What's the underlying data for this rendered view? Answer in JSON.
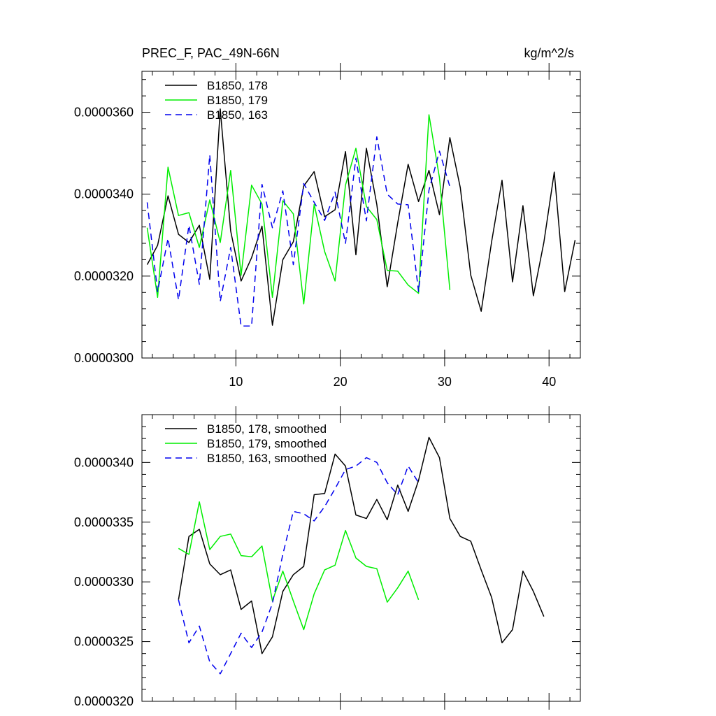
{
  "chart_data": [
    {
      "type": "line",
      "title_left": "PREC_F, PAC_49N-66N",
      "title_right": "kg/m^2/s",
      "xlim": [
        1,
        43
      ],
      "ylim": [
        3e-05,
        3.7e-05
      ],
      "x_ticks": [
        10,
        20,
        30,
        40
      ],
      "x_tick_labels": [
        "10",
        "20",
        "30",
        "40"
      ],
      "y_ticks": [
        3e-05,
        3.2e-05,
        3.4e-05,
        3.6e-05
      ],
      "y_tick_labels": [
        "0.0000300",
        "0.0000320",
        "0.0000340",
        "0.0000360"
      ],
      "series": [
        {
          "name": "B1850, 178",
          "color": "#000000",
          "dash": "solid",
          "x_start": 1.5,
          "values": [
            3.228e-05,
            3.275e-05,
            3.396e-05,
            3.302e-05,
            3.282e-05,
            3.324e-05,
            3.192e-05,
            3.608e-05,
            3.31e-05,
            3.188e-05,
            3.245e-05,
            3.322e-05,
            3.08e-05,
            3.24e-05,
            3.284e-05,
            3.42e-05,
            3.455e-05,
            3.345e-05,
            3.362e-05,
            3.504e-05,
            3.252e-05,
            3.512e-05,
            3.375e-05,
            3.174e-05,
            3.33e-05,
            3.473e-05,
            3.382e-05,
            3.458e-05,
            3.35e-05,
            3.538e-05,
            3.416e-05,
            3.202e-05,
            3.114e-05,
            3.284e-05,
            3.434e-05,
            3.186e-05,
            3.372e-05,
            3.152e-05,
            3.282e-05,
            3.454e-05,
            3.162e-05,
            3.288e-05
          ]
        },
        {
          "name": "B1850, 179",
          "color": "#00ee00",
          "dash": "solid",
          "x_start": 1.5,
          "values": [
            3.318e-05,
            3.148e-05,
            3.466e-05,
            3.348e-05,
            3.355e-05,
            3.27e-05,
            3.386e-05,
            3.282e-05,
            3.458e-05,
            3.202e-05,
            3.422e-05,
            3.376e-05,
            3.148e-05,
            3.384e-05,
            3.352e-05,
            3.132e-05,
            3.375e-05,
            3.26e-05,
            3.188e-05,
            3.422e-05,
            3.512e-05,
            3.37e-05,
            3.338e-05,
            3.214e-05,
            3.212e-05,
            3.178e-05,
            3.158e-05,
            3.594e-05,
            3.44e-05,
            3.166e-05
          ]
        },
        {
          "name": "B1850, 163",
          "color": "#0000ee",
          "dash": "dashed",
          "x_start": 1.5,
          "values": [
            3.38e-05,
            3.162e-05,
            3.292e-05,
            3.142e-05,
            3.324e-05,
            3.18e-05,
            3.496e-05,
            3.138e-05,
            3.27e-05,
            3.078e-05,
            3.078e-05,
            3.424e-05,
            3.318e-05,
            3.408e-05,
            3.228e-05,
            3.426e-05,
            3.38e-05,
            3.336e-05,
            3.405e-05,
            3.28e-05,
            3.488e-05,
            3.335e-05,
            3.54e-05,
            3.4e-05,
            3.376e-05,
            3.374e-05,
            3.162e-05,
            3.41e-05,
            3.505e-05,
            3.418e-05
          ]
        }
      ]
    },
    {
      "type": "line",
      "xlim": [
        1,
        43
      ],
      "ylim": [
        3.2e-05,
        3.44e-05
      ],
      "x_ticks": [
        10,
        20,
        30,
        40
      ],
      "y_ticks": [
        3.2e-05,
        3.25e-05,
        3.3e-05,
        3.35e-05,
        3.4e-05
      ],
      "y_tick_labels": [
        "0.0000320",
        "0.0000325",
        "0.0000330",
        "0.0000335",
        "0.0000340"
      ],
      "series": [
        {
          "name": "B1850, 178, smoothed",
          "color": "#000000",
          "dash": "solid",
          "x_start": 4.5,
          "values": [
            3.285e-05,
            3.338e-05,
            3.344e-05,
            3.315e-05,
            3.306e-05,
            3.31e-05,
            3.277e-05,
            3.284e-05,
            3.24e-05,
            3.254e-05,
            3.292e-05,
            3.306e-05,
            3.313e-05,
            3.373e-05,
            3.374e-05,
            3.407e-05,
            3.397e-05,
            3.356e-05,
            3.353e-05,
            3.369e-05,
            3.352e-05,
            3.381e-05,
            3.359e-05,
            3.385e-05,
            3.421e-05,
            3.404e-05,
            3.353e-05,
            3.338e-05,
            3.334e-05,
            3.31e-05,
            3.287e-05,
            3.249e-05,
            3.26e-05,
            3.309e-05,
            3.292e-05,
            3.271e-05
          ]
        },
        {
          "name": "B1850, 179, smoothed",
          "color": "#00ee00",
          "dash": "solid",
          "x_start": 4.5,
          "values": [
            3.328e-05,
            3.323e-05,
            3.367e-05,
            3.327e-05,
            3.338e-05,
            3.34e-05,
            3.322e-05,
            3.321e-05,
            3.33e-05,
            3.284e-05,
            3.309e-05,
            3.284e-05,
            3.26e-05,
            3.29e-05,
            3.31e-05,
            3.314e-05,
            3.343e-05,
            3.32e-05,
            3.313e-05,
            3.311e-05,
            3.283e-05,
            3.295e-05,
            3.309e-05,
            3.285e-05
          ]
        },
        {
          "name": "B1850, 163, smoothed",
          "color": "#0000ee",
          "dash": "dashed",
          "x_start": 4.5,
          "values": [
            3.285e-05,
            3.249e-05,
            3.263e-05,
            3.233e-05,
            3.223e-05,
            3.24e-05,
            3.257e-05,
            3.245e-05,
            3.258e-05,
            3.282e-05,
            3.323e-05,
            3.359e-05,
            3.357e-05,
            3.351e-05,
            3.363e-05,
            3.378e-05,
            3.394e-05,
            3.397e-05,
            3.404e-05,
            3.4e-05,
            3.383e-05,
            3.373e-05,
            3.397e-05,
            3.383e-05
          ]
        }
      ]
    }
  ]
}
